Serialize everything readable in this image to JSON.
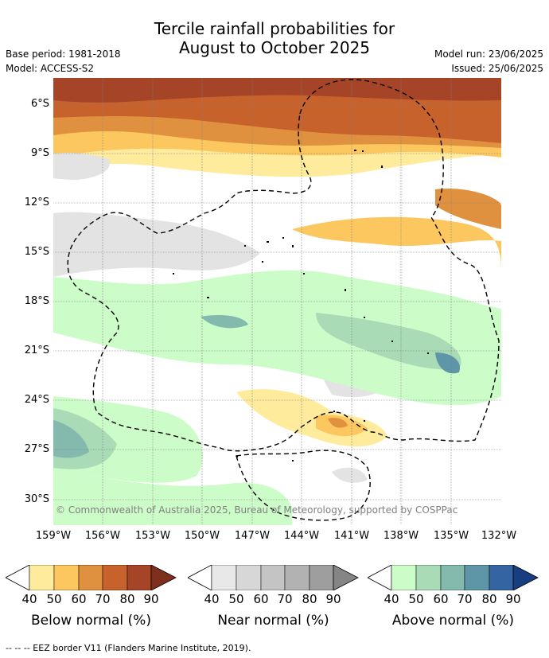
{
  "title_line1": "Tercile rainfall probabilities for",
  "title_line2": "August to October 2025",
  "base_period": "Base period: 1981-2018",
  "model": "Model: ACCESS-S2",
  "model_run": "Model run: 23/06/2025",
  "issued": "Issued: 25/06/2025",
  "copyright": "© Commonwealth of Australia 2025, Bureau of Meteorology, supported by COSPPac",
  "lat_labels": [
    "6°S",
    "9°S",
    "12°S",
    "15°S",
    "18°S",
    "21°S",
    "24°S",
    "27°S",
    "30°S"
  ],
  "lon_labels": [
    "159°W",
    "156°W",
    "153°W",
    "150°W",
    "147°W",
    "144°W",
    "141°W",
    "138°W",
    "135°W",
    "132°W"
  ],
  "colorbars": [
    {
      "label": "Below normal (%)",
      "ticks": [
        "40",
        "50",
        "60",
        "70",
        "80",
        "90"
      ],
      "colors": [
        "#ffeb9c",
        "#fdc75f",
        "#e0913f",
        "#c8622d",
        "#a64427",
        "#7f2f1d"
      ]
    },
    {
      "label": "Near normal (%)",
      "ticks": [
        "40",
        "50",
        "60",
        "70",
        "80",
        "90"
      ],
      "colors": [
        "#e8e8e8",
        "#d7d7d7",
        "#c4c4c4",
        "#b2b2b2",
        "#9e9e9e",
        "#858585"
      ]
    },
    {
      "label": "Above normal (%)",
      "ticks": [
        "40",
        "50",
        "60",
        "70",
        "80",
        "90"
      ],
      "colors": [
        "#ccfcc8",
        "#a9dbb6",
        "#84b9ad",
        "#5e95a7",
        "#3564a3",
        "#183e82"
      ]
    }
  ],
  "footnote": "-- -- -- EEZ border V11 (Flanders Marine Institute, 2019).",
  "colors": {
    "below_dark": "#a64427",
    "below_mid": "#c8622d",
    "below_light": "#e0913f",
    "below_pale": "#fdc75f",
    "below_faint": "#ffeb9c",
    "near": "#e3e3e3",
    "above_faint": "#ccfcc8",
    "above_mid": "#a9dbb6",
    "above_dark": "#84b9ad",
    "above_deep": "#5e95a7"
  }
}
